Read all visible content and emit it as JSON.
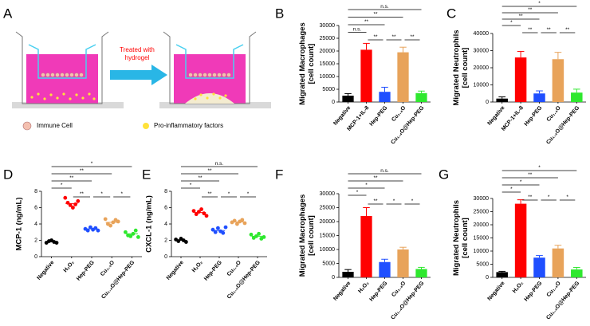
{
  "panel_a": {
    "label": "A",
    "arrow_text": [
      "Treated with",
      "hydrogel"
    ],
    "legend": [
      "Immune Cell",
      "Pro-inflammatory factors"
    ]
  },
  "chart_data": [
    {
      "type": "bar",
      "panel": "B",
      "ylabel": [
        "Migrated Macrophages",
        "[cell count]"
      ],
      "categories": [
        "Negative",
        "MCP-1+IL-8",
        "Hep-PEG",
        "Cu₁.₄O",
        "Cu₁.₄O@Hep-PEG"
      ],
      "values": [
        2500,
        20500,
        4000,
        19500,
        3500
      ],
      "errors": [
        800,
        2500,
        1800,
        2000,
        800
      ],
      "colors": [
        "#000000",
        "#ff0000",
        "#1f4fff",
        "#e8a35a",
        "#2ee82e"
      ],
      "ylim": [
        0,
        30000
      ],
      "yticks": [
        0,
        5000,
        10000,
        15000,
        20000,
        25000,
        30000
      ],
      "brackets": [
        {
          "from": "Negative",
          "to": "Cu₁.₄O@Hep-PEG",
          "label": "n.s."
        },
        {
          "from": "Negative",
          "to": "Cu₁.₄O",
          "label": "**"
        },
        {
          "from": "Negative",
          "to": "Hep-PEG",
          "label": "**"
        },
        {
          "from": "Negative",
          "to": "MCP-1+IL-8",
          "label": "n.s."
        },
        {
          "from": "MCP-1+IL-8",
          "to": "Hep-PEG",
          "label": "**"
        },
        {
          "from": "Hep-PEG",
          "to": "Cu₁.₄O",
          "label": "**"
        },
        {
          "from": "Cu₁.₄O",
          "to": "Cu₁.₄O@Hep-PEG",
          "label": "**"
        }
      ]
    },
    {
      "type": "bar",
      "panel": "C",
      "ylabel": [
        "Migrated Neutrophils",
        "[cell count]"
      ],
      "categories": [
        "Negative",
        "MCP-1+IL-8",
        "Hep-PEG",
        "Cu₁.₄O",
        "Cu₁.₄O@Hep-PEG"
      ],
      "values": [
        2000,
        26000,
        5000,
        25000,
        5500
      ],
      "errors": [
        1000,
        3500,
        1500,
        4000,
        2000
      ],
      "colors": [
        "#000000",
        "#ff0000",
        "#1f4fff",
        "#e8a35a",
        "#2ee82e"
      ],
      "ylim": [
        0,
        40000
      ],
      "yticks": [
        0,
        10000,
        20000,
        30000,
        40000
      ],
      "brackets": [
        {
          "from": "Negative",
          "to": "Cu₁.₄O@Hep-PEG",
          "label": "*"
        },
        {
          "from": "Negative",
          "to": "Cu₁.₄O",
          "label": "**"
        },
        {
          "from": "Negative",
          "to": "Hep-PEG",
          "label": "**"
        },
        {
          "from": "Negative",
          "to": "MCP-1+IL-8",
          "label": "*"
        },
        {
          "from": "MCP-1+IL-8",
          "to": "Hep-PEG",
          "label": "**"
        },
        {
          "from": "Hep-PEG",
          "to": "Cu₁.₄O",
          "label": "**"
        },
        {
          "from": "Cu₁.₄O",
          "to": "Cu₁.₄O@Hep-PEG",
          "label": "**"
        }
      ]
    },
    {
      "type": "strip",
      "panel": "D",
      "ylabel": [
        "MCP-1 (ng/mL)"
      ],
      "categories": [
        "Negative",
        "H₂O₂",
        "Hep-PEG",
        "Cu₁.₄O",
        "Cu₁.₄O@Hep-PEG"
      ],
      "points": [
        [
          1.7,
          1.9,
          2.0,
          1.8,
          1.7
        ],
        [
          7.2,
          6.6,
          6.3,
          6.0,
          6.4,
          6.8
        ],
        [
          3.4,
          3.2,
          3.6,
          3.3,
          3.5,
          3.2
        ],
        [
          4.6,
          4.0,
          3.8,
          4.2,
          4.5,
          4.3
        ],
        [
          3.0,
          2.6,
          2.5,
          2.8,
          3.2,
          2.4
        ]
      ],
      "means": [
        1.8,
        6.5,
        3.4,
        4.2,
        2.8
      ],
      "colors": [
        "#000000",
        "#ff0000",
        "#1f4fff",
        "#e8a35a",
        "#2ee82e"
      ],
      "ylim": [
        0,
        8
      ],
      "yticks": [
        0,
        2,
        4,
        6,
        8
      ],
      "brackets": [
        {
          "from": "Negative",
          "to": "Cu₁.₄O@Hep-PEG",
          "label": "*"
        },
        {
          "from": "Negative",
          "to": "Cu₁.₄O",
          "label": "**"
        },
        {
          "from": "Negative",
          "to": "Hep-PEG",
          "label": "**"
        },
        {
          "from": "Negative",
          "to": "H₂O₂",
          "label": "*"
        },
        {
          "from": "H₂O₂",
          "to": "Hep-PEG",
          "label": "**"
        },
        {
          "from": "Hep-PEG",
          "to": "Cu₁.₄O",
          "label": "*"
        },
        {
          "from": "Cu₁.₄O",
          "to": "Cu₁.₄O@Hep-PEG",
          "label": "*"
        }
      ]
    },
    {
      "type": "strip",
      "panel": "E",
      "ylabel": [
        "CXCL-1 (ng/mL)"
      ],
      "categories": [
        "Negative",
        "H₂O₂",
        "Hep-PEG",
        "Cu₁.₄O",
        "Cu₁.₄O@Hep-PEG"
      ],
      "points": [
        [
          2.1,
          1.9,
          2.2,
          2.0,
          1.8
        ],
        [
          5.6,
          5.2,
          5.5,
          5.8,
          5.3,
          5.0
        ],
        [
          3.3,
          3.0,
          3.5,
          3.1,
          2.9,
          3.6
        ],
        [
          4.2,
          4.4,
          4.0,
          4.3,
          4.5,
          4.1
        ],
        [
          2.7,
          2.3,
          2.5,
          2.8,
          2.2,
          2.4
        ]
      ],
      "means": [
        2.0,
        5.4,
        3.2,
        4.25,
        2.5
      ],
      "colors": [
        "#000000",
        "#ff0000",
        "#1f4fff",
        "#e8a35a",
        "#2ee82e"
      ],
      "ylim": [
        0,
        8
      ],
      "yticks": [
        0,
        2,
        4,
        6,
        8
      ],
      "brackets": [
        {
          "from": "Negative",
          "to": "Cu₁.₄O@Hep-PEG",
          "label": "n.s."
        },
        {
          "from": "Negative",
          "to": "Cu₁.₄O",
          "label": "**"
        },
        {
          "from": "Negative",
          "to": "Hep-PEG",
          "label": "**"
        },
        {
          "from": "Negative",
          "to": "H₂O₂",
          "label": "*"
        },
        {
          "from": "H₂O₂",
          "to": "Hep-PEG",
          "label": "**"
        },
        {
          "from": "Hep-PEG",
          "to": "Cu₁.₄O",
          "label": "*"
        },
        {
          "from": "Cu₁.₄O",
          "to": "Cu₁.₄O@Hep-PEG",
          "label": "*"
        }
      ]
    },
    {
      "type": "bar",
      "panel": "F",
      "ylabel": [
        "Migrated Macrophages",
        "[cell count]"
      ],
      "categories": [
        "Negative",
        "H₂O₂",
        "Hep-PEG",
        "Cu₁.₄O",
        "Cu₁.₄O@Hep-PEG"
      ],
      "values": [
        2000,
        22000,
        5500,
        10000,
        3000
      ],
      "errors": [
        800,
        3000,
        1000,
        800,
        600
      ],
      "colors": [
        "#000000",
        "#ff0000",
        "#1f4fff",
        "#e8a35a",
        "#2ee82e"
      ],
      "ylim": [
        0,
        30000
      ],
      "yticks": [
        0,
        5000,
        10000,
        15000,
        20000,
        25000,
        30000
      ],
      "brackets": [
        {
          "from": "Negative",
          "to": "Cu₁.₄O@Hep-PEG",
          "label": "n.s."
        },
        {
          "from": "Negative",
          "to": "Cu₁.₄O",
          "label": "**"
        },
        {
          "from": "Negative",
          "to": "Hep-PEG",
          "label": "*"
        },
        {
          "from": "Negative",
          "to": "H₂O₂",
          "label": "*"
        },
        {
          "from": "H₂O₂",
          "to": "Hep-PEG",
          "label": "**"
        },
        {
          "from": "Hep-PEG",
          "to": "Cu₁.₄O",
          "label": "*"
        },
        {
          "from": "Cu₁.₄O",
          "to": "Cu₁.₄O@Hep-PEG",
          "label": "*"
        }
      ]
    },
    {
      "type": "bar",
      "panel": "G",
      "ylabel": [
        "Migrated Neutrophils",
        "[cell count]"
      ],
      "categories": [
        "Negative",
        "H₂O₂",
        "Hep-PEG",
        "Cu₁.₄O",
        "Cu₁.₄O@Hep-PEG"
      ],
      "values": [
        2000,
        28000,
        7500,
        11000,
        3000
      ],
      "errors": [
        300,
        1500,
        800,
        1200,
        800
      ],
      "colors": [
        "#000000",
        "#ff0000",
        "#1f4fff",
        "#e8a35a",
        "#2ee82e"
      ],
      "ylim": [
        0,
        30000
      ],
      "yticks": [
        0,
        5000,
        10000,
        15000,
        20000,
        25000,
        30000
      ],
      "brackets": [
        {
          "from": "Negative",
          "to": "Cu₁.₄O@Hep-PEG",
          "label": "*"
        },
        {
          "from": "Negative",
          "to": "Cu₁.₄O",
          "label": "**"
        },
        {
          "from": "Negative",
          "to": "Hep-PEG",
          "label": "*"
        },
        {
          "from": "Negative",
          "to": "H₂O₂",
          "label": "*"
        },
        {
          "from": "H₂O₂",
          "to": "Hep-PEG",
          "label": "**"
        },
        {
          "from": "Hep-PEG",
          "to": "Cu₁.₄O",
          "label": "*"
        },
        {
          "from": "Cu₁.₄O",
          "to": "Cu₁.₄O@Hep-PEG",
          "label": "*"
        }
      ]
    }
  ]
}
